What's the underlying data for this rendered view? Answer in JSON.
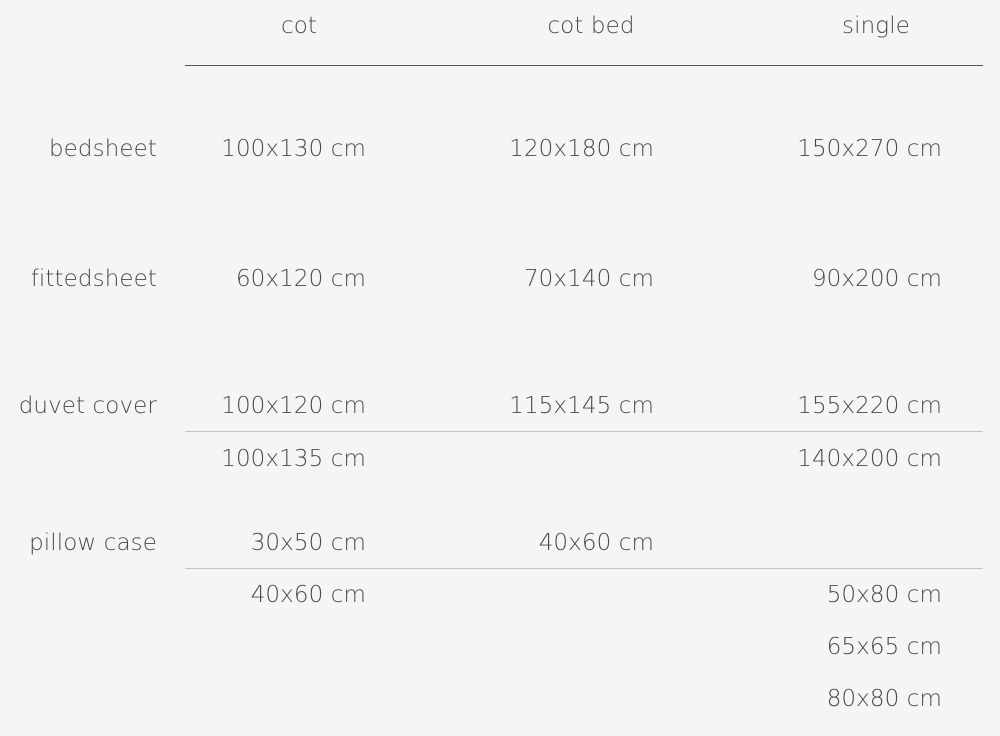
{
  "columns": [
    "cot",
    "cot bed",
    "single"
  ],
  "rows": [
    {
      "label": "bedsheet",
      "cot": [
        "100x130 cm"
      ],
      "cot_bed": [
        "120x180 cm"
      ],
      "single": [
        "150x270 cm"
      ]
    },
    {
      "label": "fittedsheet",
      "cot": [
        "60x120 cm"
      ],
      "cot_bed": [
        "70x140 cm"
      ],
      "single": [
        "90x200 cm"
      ]
    },
    {
      "label": "duvet cover",
      "cot": [
        "100x120 cm",
        "100x135 cm"
      ],
      "cot_bed": [
        "115x145 cm"
      ],
      "single": [
        "155x220 cm",
        "140x200 cm"
      ]
    },
    {
      "label": "pillow case",
      "cot": [
        "30x50 cm",
        "40x60 cm"
      ],
      "cot_bed": [
        "40x60 cm"
      ],
      "single": [
        "50x80 cm",
        "65x65 cm",
        "80x80 cm"
      ]
    }
  ]
}
